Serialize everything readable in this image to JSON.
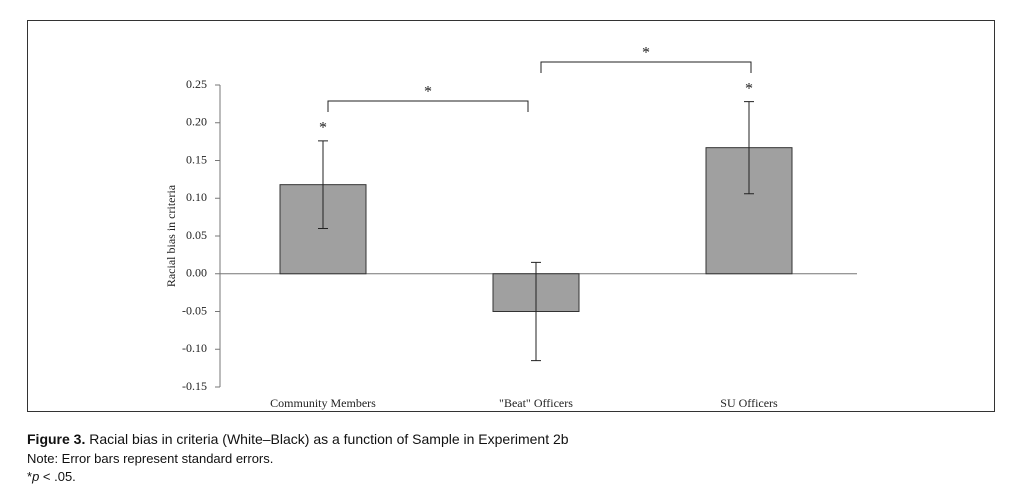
{
  "chart_data": {
    "type": "bar",
    "y_label": "Racial bias in criteria",
    "categories": [
      "Community Members",
      "\"Beat\" Officers",
      "SU Officers"
    ],
    "values": [
      0.118,
      -0.05,
      0.167
    ],
    "errors": [
      0.058,
      0.065,
      0.061
    ],
    "bar_labels": [
      "*",
      null,
      "*"
    ],
    "comparisons": [
      {
        "pair": [
          "Community Members",
          "\"Beat\" Officers"
        ],
        "label": "*"
      },
      {
        "pair": [
          "\"Beat\" Officers",
          "SU Officers"
        ],
        "label": "*"
      }
    ],
    "color": "#a0a0a0",
    "ylim": [
      -0.15,
      0.25
    ],
    "yticks": [
      -0.15,
      {
        "value": -0.1,
        "label": "-0.10"
      },
      -0.05,
      {
        "value": 0,
        "label": "0.00"
      },
      0.05,
      {
        "value": 0.1,
        "label": "0.10"
      },
      0.15,
      {
        "value": 0.2,
        "label": "0.20"
      },
      0.25
    ],
    "grid": false
  },
  "caption": {
    "figure_label": "Figure 3.",
    "text": "Racial bias in criteria (White–Black) as a function of Sample in Experiment 2b",
    "note": "Note: Error bars represent standard errors.",
    "footnote_star": "*",
    "footnote_p": "p",
    "footnote_rest": " < .05."
  }
}
